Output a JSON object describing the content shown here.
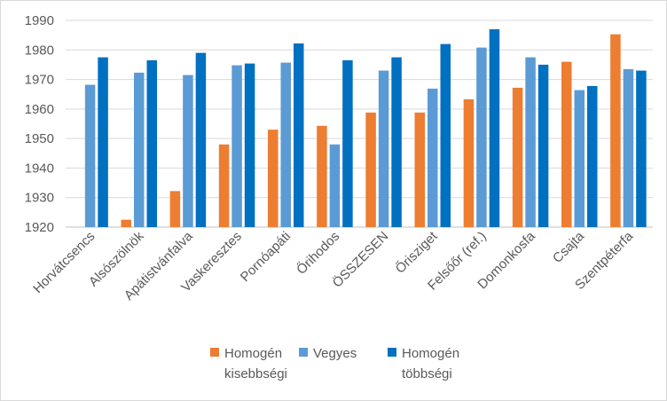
{
  "chart_data": {
    "type": "bar",
    "categories": [
      "Horvátcsencs",
      "Alsószölnök",
      "Apátistvánfalva",
      "Vaskeresztes",
      "Pornóapáti",
      "Őrihodos",
      "ÖSSZESEN",
      "Őrisziget",
      "Felsőőr (ref.)",
      "Domonkosfa",
      "Csajta",
      "Szentpéterfa"
    ],
    "series": [
      {
        "name": "Homogén kisebbségi",
        "name_lines": [
          "Homogén",
          "kisebbségi"
        ],
        "color": "#ed7d31",
        "values": [
          null,
          1922.5,
          1932.2,
          1948.0,
          1953.0,
          1954.3,
          1958.8,
          1958.8,
          1963.3,
          1967.2,
          1976.0,
          1985.3
        ]
      },
      {
        "name": "Vegyes",
        "name_lines": [
          "Vegyes"
        ],
        "color": "#5b9bd5",
        "values": [
          1968.2,
          1972.3,
          1971.5,
          1974.8,
          1975.7,
          1948.0,
          1973.0,
          1966.9,
          1980.8,
          1977.5,
          1966.4,
          1973.5
        ]
      },
      {
        "name": "Homogén többségi",
        "name_lines": [
          "Homogén",
          "többségi"
        ],
        "color": "#0070c0",
        "values": [
          1977.5,
          1976.5,
          1979.0,
          1975.4,
          1982.2,
          1976.5,
          1977.5,
          1982.0,
          1987.0,
          1975.0,
          1967.8,
          1973.0
        ]
      }
    ],
    "yticks": [
      "1920",
      "1930",
      "1940",
      "1950",
      "1960",
      "1970",
      "1980",
      "1990"
    ],
    "ylim": [
      1920,
      1990
    ],
    "grid": true,
    "gridColor": "#d9d9d9",
    "axisColor": "#bfbfbf",
    "legend": "bottom"
  }
}
